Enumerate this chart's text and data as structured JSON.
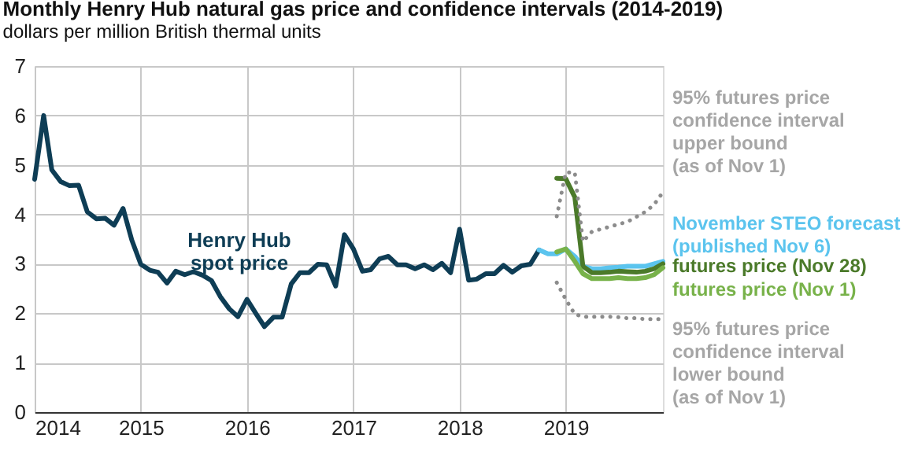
{
  "chart_data": {
    "type": "line",
    "title": "Monthly Henry Hub natural gas price and confidence intervals (2014-2019)",
    "subtitle": "dollars per million British thermal units",
    "xlim": [
      "2014-01-01",
      "2019-12-01"
    ],
    "xticks": [
      "2014",
      "2015",
      "2016",
      "2017",
      "2018",
      "2019"
    ],
    "ylim": [
      0,
      7
    ],
    "yticks": [
      0,
      1,
      2,
      3,
      4,
      5,
      6,
      7
    ],
    "grid": true,
    "marker": "none",
    "series": [
      {
        "name": "Henry Hub\nspot price",
        "color": "#0e3d55",
        "line_style": "solid",
        "x": [
          "2014-01",
          "2014-02",
          "2014-03",
          "2014-04",
          "2014-05",
          "2014-06",
          "2014-07",
          "2014-08",
          "2014-09",
          "2014-10",
          "2014-11",
          "2014-12",
          "2015-01",
          "2015-02",
          "2015-03",
          "2015-04",
          "2015-05",
          "2015-06",
          "2015-07",
          "2015-08",
          "2015-09",
          "2015-10",
          "2015-11",
          "2015-12",
          "2016-01",
          "2016-02",
          "2016-03",
          "2016-04",
          "2016-05",
          "2016-06",
          "2016-07",
          "2016-08",
          "2016-09",
          "2016-10",
          "2016-11",
          "2016-12",
          "2017-01",
          "2017-02",
          "2017-03",
          "2017-04",
          "2017-05",
          "2017-06",
          "2017-07",
          "2017-08",
          "2017-09",
          "2017-10",
          "2017-11",
          "2017-12",
          "2018-01",
          "2018-02",
          "2018-03",
          "2018-04",
          "2018-05",
          "2018-06",
          "2018-07",
          "2018-08",
          "2018-09",
          "2018-10"
        ],
        "values": [
          4.71,
          6.0,
          4.9,
          4.66,
          4.58,
          4.59,
          4.05,
          3.91,
          3.92,
          3.78,
          4.12,
          3.48,
          2.99,
          2.87,
          2.83,
          2.61,
          2.85,
          2.78,
          2.84,
          2.77,
          2.66,
          2.34,
          2.09,
          1.93,
          2.28,
          1.99,
          1.73,
          1.92,
          1.92,
          2.59,
          2.82,
          2.82,
          2.99,
          2.98,
          2.55,
          3.59,
          3.3,
          2.85,
          2.88,
          3.1,
          3.15,
          2.98,
          2.98,
          2.9,
          2.98,
          2.88,
          3.01,
          2.82,
          3.7,
          2.67,
          2.69,
          2.8,
          2.8,
          2.97,
          2.83,
          2.96,
          2.99,
          3.28
        ]
      },
      {
        "name": "November STEO forecast\n(published Nov 6)",
        "color": "#5bc4ee",
        "line_style": "solid",
        "x": [
          "2018-10",
          "2018-11",
          "2018-12",
          "2019-01",
          "2019-02",
          "2019-03",
          "2019-04",
          "2019-05",
          "2019-06",
          "2019-07",
          "2019-08",
          "2019-09",
          "2019-10",
          "2019-11",
          "2019-12"
        ],
        "values": [
          3.28,
          3.2,
          3.2,
          3.3,
          3.15,
          2.95,
          2.9,
          2.9,
          2.92,
          2.93,
          2.95,
          2.95,
          2.95,
          3.0,
          3.05
        ]
      },
      {
        "name": "futures price (Nov 28)",
        "color": "#4b7a2a",
        "line_style": "solid",
        "x": [
          "2018-12",
          "2019-01",
          "2019-02",
          "2019-03",
          "2019-04",
          "2019-05",
          "2019-06",
          "2019-07",
          "2019-08",
          "2019-09",
          "2019-10",
          "2019-11",
          "2019-12"
        ],
        "values": [
          4.73,
          4.72,
          4.35,
          2.95,
          2.82,
          2.82,
          2.83,
          2.85,
          2.84,
          2.83,
          2.85,
          2.9,
          3.0
        ]
      },
      {
        "name": "futures price (Nov 1)",
        "color": "#78b24a",
        "line_style": "solid",
        "x": [
          "2018-12",
          "2019-01",
          "2019-02",
          "2019-03",
          "2019-04",
          "2019-05",
          "2019-06",
          "2019-07",
          "2019-08",
          "2019-09",
          "2019-10",
          "2019-11",
          "2019-12"
        ],
        "values": [
          3.24,
          3.3,
          3.05,
          2.8,
          2.7,
          2.7,
          2.7,
          2.72,
          2.7,
          2.7,
          2.72,
          2.78,
          2.92
        ]
      },
      {
        "name": "95% futures price\nconfidence interval\nupper bound\n(as of Nov 1)",
        "color": "#8c8c8c",
        "line_style": "dotted",
        "x": [
          "2018-12",
          "2019-01",
          "2019-02",
          "2019-03",
          "2019-04",
          "2019-05",
          "2019-06",
          "2019-07",
          "2019-08",
          "2019-09",
          "2019-10",
          "2019-11",
          "2019-12"
        ],
        "values": [
          3.96,
          4.85,
          4.85,
          3.45,
          3.65,
          3.7,
          3.75,
          3.8,
          3.85,
          3.95,
          4.05,
          4.2,
          4.45
        ]
      },
      {
        "name": "95% futures price\nconfidence interval\nlower bound\n(as of Nov 1)",
        "color": "#8c8c8c",
        "line_style": "dotted",
        "x": [
          "2018-12",
          "2019-01",
          "2019-02",
          "2019-03",
          "2019-04",
          "2019-05",
          "2019-06",
          "2019-07",
          "2019-08",
          "2019-09",
          "2019-10",
          "2019-11",
          "2019-12"
        ],
        "values": [
          2.62,
          2.28,
          1.98,
          1.93,
          1.93,
          1.93,
          1.93,
          1.92,
          1.9,
          1.9,
          1.88,
          1.88,
          1.88
        ]
      }
    ]
  }
}
